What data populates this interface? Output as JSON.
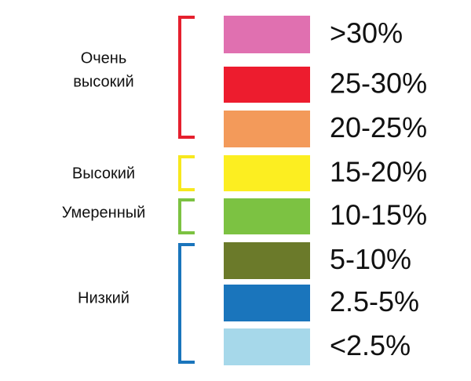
{
  "groups": [
    {
      "lines": [
        "Очень",
        "высокий"
      ],
      "color": "#e5202e"
    },
    {
      "lines": [
        "Высокий"
      ],
      "color": "#f7e81e"
    },
    {
      "lines": [
        "Умеренный"
      ],
      "color": "#7cc242"
    },
    {
      "lines": [
        "Низкий"
      ],
      "color": "#1a75bc"
    }
  ],
  "swatches": [
    {
      "label": ">30%",
      "color": "#e070b0"
    },
    {
      "label": "25-30%",
      "color": "#ed1c2e"
    },
    {
      "label": "20-25%",
      "color": "#f39a5a"
    },
    {
      "label": "15-20%",
      "color": "#fcee21"
    },
    {
      "label": "10-15%",
      "color": "#7cc242"
    },
    {
      "label": "5-10%",
      "color": "#6b7a2a"
    },
    {
      "label": "2.5-5%",
      "color": "#1a75bc"
    },
    {
      "label": "<2.5%",
      "color": "#a6d8ea"
    }
  ]
}
